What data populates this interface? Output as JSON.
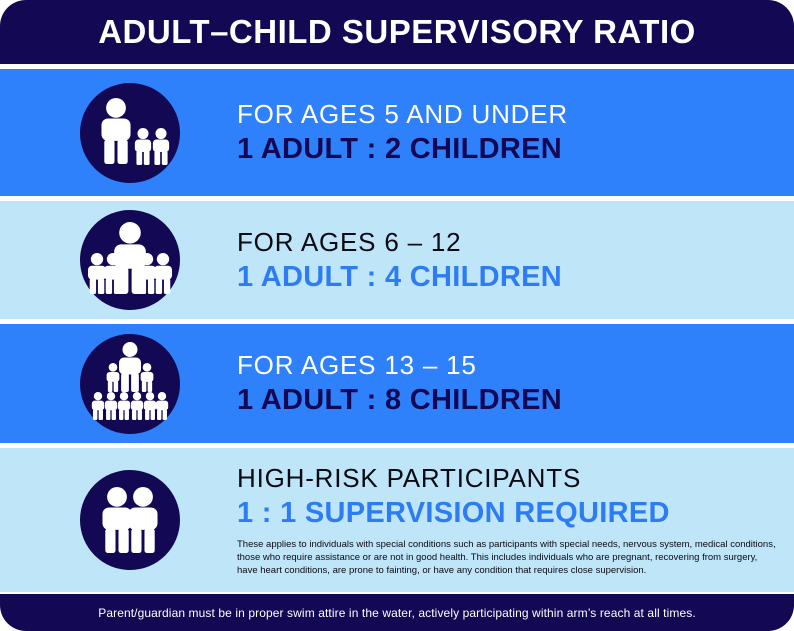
{
  "header": {
    "title": "ADULT–CHILD SUPERVISORY RATIO"
  },
  "rows": [
    {
      "icon": "adult-with-two-children-icon",
      "heading": "FOR AGES 5 AND UNDER",
      "ratio": "1 ADULT : 2 CHILDREN",
      "theme": "bright"
    },
    {
      "icon": "adult-with-four-children-icon",
      "heading": "FOR AGES 6 – 12",
      "ratio": "1 ADULT : 4 CHILDREN",
      "theme": "light"
    },
    {
      "icon": "adult-with-eight-children-icon",
      "heading": "FOR AGES 13 – 15",
      "ratio": "1 ADULT : 8 CHILDREN",
      "theme": "bright"
    },
    {
      "icon": "two-adults-icon",
      "heading": "HIGH-RISK PARTICIPANTS",
      "ratio": "1 : 1 SUPERVISION REQUIRED",
      "theme": "light",
      "note": "These applies to individuals with special conditions such as participants with special needs, nervous system, medical conditions, those who require assistance or are not in good health. This includes individuals who are pregnant, recovering from surgery, have heart conditions, are prone to fainting, or have any condition that requires close supervision."
    }
  ],
  "footer": {
    "text": "Parent/guardian must be in proper swim attire in the water, actively participating within arm’s reach at all times."
  },
  "colors": {
    "navy": "#130853",
    "bright_blue_row": "#2F80FB",
    "light_blue_row": "#BFE5F9",
    "accent_blue_text": "#2E7CF3",
    "dark_text": "#0A0A12",
    "white": "#FFFFFF"
  }
}
